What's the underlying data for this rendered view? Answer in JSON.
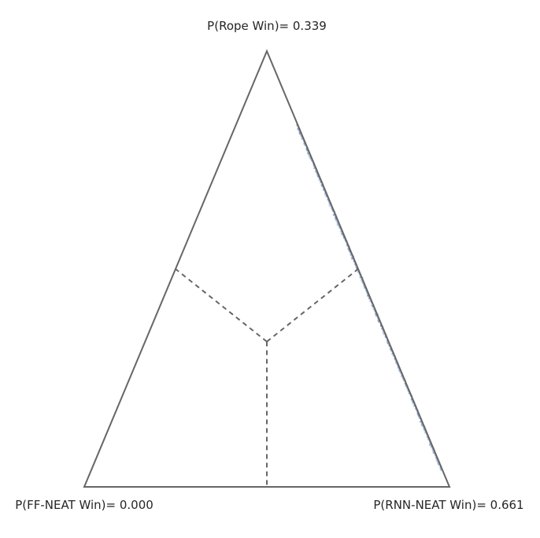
{
  "chart_data": {
    "type": "ternary-scatter",
    "vertices": {
      "top": {
        "name": "Rope",
        "label": "P(Rope Win)= 0.339"
      },
      "right": {
        "name": "RNN-NEAT",
        "label": "P(RNN-NEAT Win)= 0.661"
      },
      "left": {
        "name": "FF-NEAT",
        "label": "P(FF-NEAT Win)= 0.000"
      }
    },
    "probabilities": {
      "rope": 0.339,
      "rnn_neat": 0.661,
      "ff_neat": 0.0
    },
    "posterior_samples": {
      "p_ff_neat": 0.0,
      "p_rope_range": [
        0.04,
        0.83
      ],
      "description_points": [
        {
          "rope": 0.83,
          "rnn_neat": 0.17,
          "ff_neat": 0.0
        },
        {
          "rope": 0.6,
          "rnn_neat": 0.4,
          "ff_neat": 0.0
        },
        {
          "rope": 0.4,
          "rnn_neat": 0.6,
          "ff_neat": 0.0
        },
        {
          "rope": 0.2,
          "rnn_neat": 0.8,
          "ff_neat": 0.0
        },
        {
          "rope": 0.04,
          "rnn_neat": 0.96,
          "ff_neat": 0.0
        }
      ],
      "color": "#4c72b0"
    },
    "region_boundaries": "dashed lines from centroid to edge midpoints",
    "edge_color": "#666666"
  }
}
